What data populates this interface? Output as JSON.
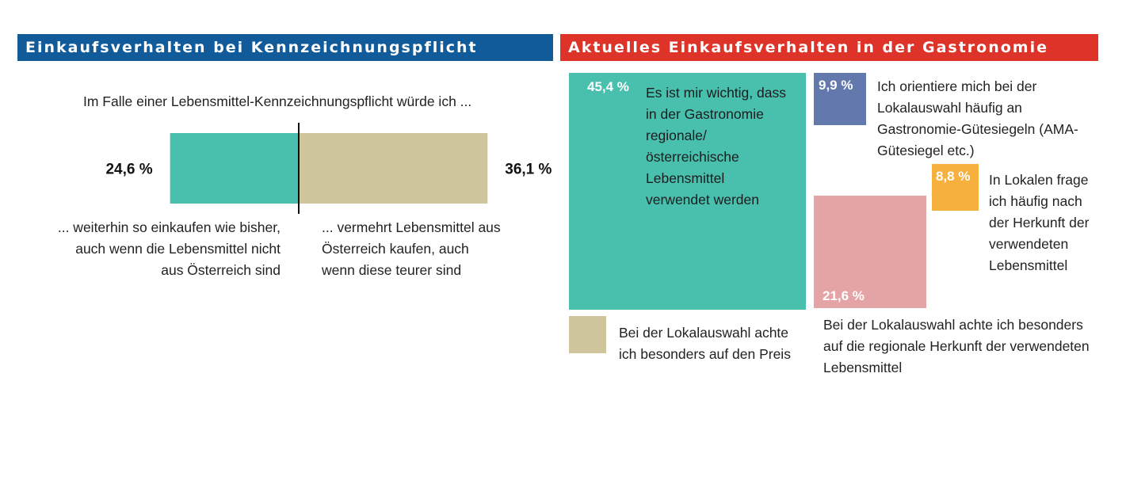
{
  "colors": {
    "left_header": "#115b9a",
    "right_header": "#dd3328",
    "teal": "#49bfae",
    "beige": "#cfc69d",
    "blue": "#6378ac",
    "pink": "#e4a4a6",
    "orange": "#f6b03e"
  },
  "left": {
    "header": "Einkaufsverhalten bei Kennzeichnungspflicht",
    "question": "Im Falle einer Lebensmittel-Kennzeichnungspflicht würde ich ...",
    "option_a_label": "... weiterhin so einkaufen wie bisher, auch wenn die Lebensmittel nicht aus Österreich sind",
    "option_b_label": "... vermehrt Lebensmittel aus Österreich kaufen, auch wenn diese teurer sind"
  },
  "right": {
    "header": "Aktuelles Einkaufsverhalten in der Gastronomie",
    "teal_pct": "45,4 %",
    "teal_text": "Es ist mir wichtig, dass in der Gastronomie regionale/österreichische Lebensmittel verwendet werden",
    "blue_pct": "9,9 %",
    "blue_text": "Ich orientiere mich bei der Lokalauswahl häufig an Gastronomie-Gütesiegeln (AMA-Gütesiegel etc.)",
    "orange_pct": "8,8 %",
    "orange_text": "In Lokalen frage ich häufig nach der Herkunft der verwendeten Lebensmittel",
    "pink_pct": "21,6 %",
    "pink_text": "Bei der Lokalauswahl achte ich besonders auf die regionale Herkunft der verwendeten Lebensmittel",
    "beige_text": "Bei der Lokalauswahl achte ich besonders auf den Preis"
  },
  "chart_data": [
    {
      "type": "bar",
      "title": "Einkaufsverhalten bei Kennzeichnungspflicht",
      "subtitle": "Im Falle einer Lebensmittel-Kennzeichnungspflicht würde ich ...",
      "orientation": "horizontal-diverging",
      "categories": [
        "... weiterhin so einkaufen wie bisher, auch wenn die Lebensmittel nicht aus Österreich sind",
        "... vermehrt Lebensmittel aus Österreich kaufen, auch wenn diese teurer sind"
      ],
      "values": [
        24.6,
        36.1
      ],
      "value_labels": [
        "24,6 %",
        "36,1 %"
      ],
      "colors": [
        "#49bfae",
        "#cfc69d"
      ]
    },
    {
      "type": "treemap",
      "title": "Aktuelles Einkaufsverhalten in der Gastronomie",
      "categories": [
        "Es ist mir wichtig, dass in der Gastronomie regionale/österreichische Lebensmittel verwendet werden",
        "Ich orientiere mich bei der Lokalauswahl häufig an Gastronomie-Gütesiegeln (AMA-Gütesiegel etc.)",
        "In Lokalen frage ich häufig nach der Herkunft der verwendeten Lebensmittel",
        "Bei der Lokalauswahl achte ich besonders auf die regionale Herkunft der verwendeten Lebensmittel",
        "Bei der Lokalauswahl achte ich besonders auf den Preis"
      ],
      "values": [
        45.4,
        9.9,
        8.8,
        21.6,
        null
      ],
      "value_labels": [
        "45,4 %",
        "9,9 %",
        "8,8 %",
        "21,6 %",
        ""
      ],
      "colors": [
        "#49bfae",
        "#6378ac",
        "#f6b03e",
        "#e4a4a6",
        "#cfc69d"
      ]
    }
  ]
}
